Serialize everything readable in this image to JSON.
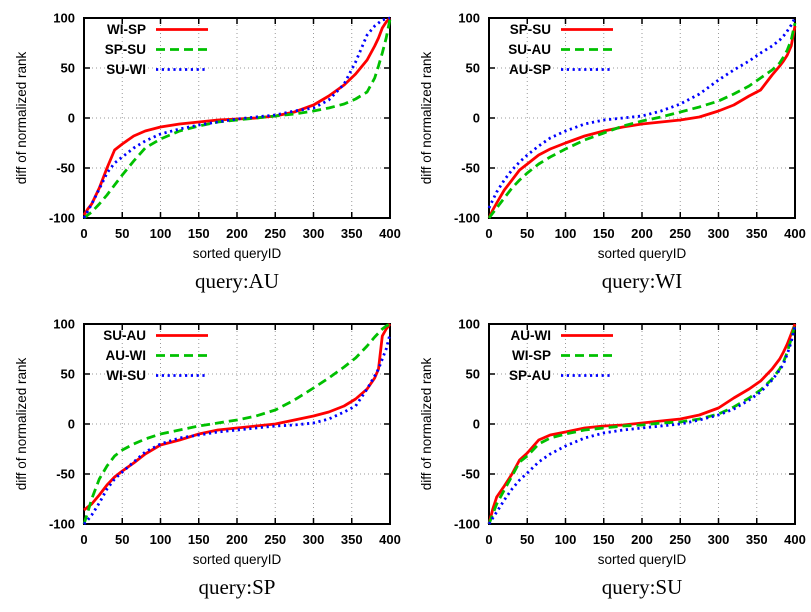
{
  "figure": {
    "background": "#ffffff",
    "grid_color": "#9a9a9a",
    "border_color": "#000000",
    "text_color": "#000000"
  },
  "chart_data": [
    {
      "type": "line",
      "title": "query:AU",
      "xlabel": "sorted queryID",
      "ylabel": "diff of normalized rank",
      "xlim": [
        0,
        400
      ],
      "ylim": [
        -100,
        100
      ],
      "xticks": [
        0,
        50,
        100,
        150,
        200,
        250,
        300,
        350,
        400
      ],
      "yticks": [
        -100,
        -50,
        0,
        50,
        100
      ],
      "grid": true,
      "legend_position": "top-left",
      "x": [
        0,
        5,
        10,
        20,
        30,
        40,
        50,
        65,
        80,
        100,
        125,
        150,
        175,
        200,
        225,
        250,
        275,
        300,
        320,
        340,
        355,
        370,
        380,
        385,
        390,
        395,
        400
      ],
      "series": [
        {
          "name": "WI-SP",
          "color": "#ff0000",
          "style": "solid",
          "y": [
            -97,
            -91,
            -86,
            -70,
            -50,
            -32,
            -26,
            -18,
            -13,
            -9,
            -6,
            -4,
            -2,
            -1,
            0,
            2,
            6,
            13,
            22,
            33,
            44,
            58,
            72,
            80,
            90,
            96,
            100
          ]
        },
        {
          "name": "SP-SU",
          "color": "#00c000",
          "style": "dashed",
          "y": [
            -100,
            -97,
            -94,
            -86,
            -77,
            -67,
            -57,
            -43,
            -30,
            -21,
            -13,
            -8,
            -4,
            -2,
            0,
            2,
            4,
            7,
            10,
            14,
            19,
            26,
            40,
            52,
            65,
            80,
            99
          ]
        },
        {
          "name": "SU-WI",
          "color": "#0000ff",
          "style": "dotted",
          "y": [
            -100,
            -93,
            -86,
            -71,
            -55,
            -45,
            -39,
            -30,
            -23,
            -16,
            -11,
            -7,
            -4,
            -1,
            1,
            3,
            7,
            10,
            18,
            34,
            56,
            83,
            92,
            95,
            98,
            99,
            100
          ]
        }
      ]
    },
    {
      "type": "line",
      "title": "query:WI",
      "xlabel": "sorted queryID",
      "ylabel": "diff of normalized rank",
      "xlim": [
        0,
        400
      ],
      "ylim": [
        -100,
        100
      ],
      "xticks": [
        0,
        50,
        100,
        150,
        200,
        250,
        300,
        350,
        400
      ],
      "yticks": [
        -100,
        -50,
        0,
        50,
        100
      ],
      "grid": true,
      "legend_position": "top-left",
      "x": [
        0,
        5,
        10,
        20,
        30,
        40,
        50,
        65,
        80,
        100,
        125,
        150,
        175,
        200,
        225,
        250,
        275,
        300,
        320,
        340,
        355,
        370,
        380,
        385,
        390,
        395,
        400
      ],
      "series": [
        {
          "name": "SP-SU",
          "color": "#ff0000",
          "style": "solid",
          "y": [
            -100,
            -92,
            -85,
            -72,
            -62,
            -52,
            -46,
            -37,
            -31,
            -25,
            -18,
            -13,
            -9,
            -6,
            -4,
            -2,
            1,
            7,
            13,
            22,
            28,
            43,
            52,
            57,
            63,
            72,
            92
          ]
        },
        {
          "name": "SU-AU",
          "color": "#00c000",
          "style": "dashed",
          "y": [
            -100,
            -95,
            -90,
            -80,
            -70,
            -62,
            -55,
            -46,
            -39,
            -31,
            -22,
            -15,
            -8,
            -3,
            1,
            6,
            11,
            17,
            24,
            32,
            40,
            48,
            55,
            61,
            68,
            78,
            95
          ]
        },
        {
          "name": "AU-SP",
          "color": "#0000ff",
          "style": "dotted",
          "y": [
            -90,
            -82,
            -74,
            -62,
            -52,
            -44,
            -37,
            -28,
            -20,
            -13,
            -6,
            -2,
            0,
            2,
            7,
            14,
            24,
            38,
            48,
            57,
            65,
            72,
            78,
            82,
            87,
            93,
            100
          ]
        }
      ]
    },
    {
      "type": "line",
      "title": "query:SP",
      "xlabel": "sorted queryID",
      "ylabel": "diff of normalized rank",
      "xlim": [
        0,
        400
      ],
      "ylim": [
        -100,
        100
      ],
      "xticks": [
        0,
        50,
        100,
        150,
        200,
        250,
        300,
        350,
        400
      ],
      "yticks": [
        -100,
        -50,
        0,
        50,
        100
      ],
      "grid": true,
      "legend_position": "top-left",
      "x": [
        0,
        5,
        10,
        20,
        30,
        40,
        50,
        65,
        80,
        100,
        125,
        150,
        175,
        200,
        225,
        250,
        275,
        300,
        320,
        340,
        355,
        370,
        380,
        385,
        390,
        395,
        400
      ],
      "series": [
        {
          "name": "SU-AU",
          "color": "#ff0000",
          "style": "solid",
          "y": [
            -86,
            -83,
            -80,
            -71,
            -61,
            -53,
            -47,
            -39,
            -30,
            -21,
            -16,
            -10,
            -6,
            -4,
            -2,
            0,
            4,
            8,
            12,
            18,
            25,
            35,
            46,
            55,
            88,
            95,
            100
          ]
        },
        {
          "name": "AU-WI",
          "color": "#00c000",
          "style": "dashed",
          "y": [
            -100,
            -88,
            -75,
            -55,
            -42,
            -32,
            -26,
            -20,
            -15,
            -10,
            -6,
            -2,
            1,
            4,
            8,
            14,
            24,
            36,
            46,
            57,
            66,
            78,
            87,
            91,
            95,
            98,
            100
          ]
        },
        {
          "name": "WI-SU",
          "color": "#0000ff",
          "style": "dotted",
          "y": [
            -100,
            -96,
            -91,
            -79,
            -65,
            -55,
            -48,
            -38,
            -28,
            -20,
            -14,
            -11,
            -8,
            -6,
            -4,
            -2,
            -1,
            1,
            5,
            12,
            18,
            35,
            48,
            55,
            65,
            75,
            90
          ]
        }
      ]
    },
    {
      "type": "line",
      "title": "query:SU",
      "xlabel": "sorted queryID",
      "ylabel": "diff of normalized rank",
      "xlim": [
        0,
        400
      ],
      "ylim": [
        -100,
        100
      ],
      "xticks": [
        0,
        50,
        100,
        150,
        200,
        250,
        300,
        350,
        400
      ],
      "yticks": [
        -100,
        -50,
        0,
        50,
        100
      ],
      "grid": true,
      "legend_position": "top-left",
      "x": [
        0,
        5,
        10,
        20,
        30,
        40,
        50,
        65,
        80,
        100,
        125,
        150,
        175,
        200,
        225,
        250,
        275,
        300,
        320,
        340,
        355,
        370,
        380,
        385,
        390,
        395,
        400
      ],
      "series": [
        {
          "name": "AU-WI",
          "color": "#ff0000",
          "style": "solid",
          "y": [
            -100,
            -85,
            -73,
            -62,
            -50,
            -36,
            -29,
            -16,
            -11,
            -8,
            -4,
            -2,
            -1,
            1,
            3,
            5,
            9,
            16,
            26,
            35,
            43,
            55,
            65,
            72,
            80,
            90,
            100
          ]
        },
        {
          "name": "WI-SP",
          "color": "#00c000",
          "style": "dashed",
          "y": [
            -100,
            -90,
            -80,
            -66,
            -52,
            -38,
            -32,
            -20,
            -14,
            -10,
            -6,
            -4,
            -2,
            -1,
            1,
            2,
            5,
            10,
            17,
            26,
            34,
            45,
            55,
            62,
            72,
            85,
            100
          ]
        },
        {
          "name": "SP-AU",
          "color": "#0000ff",
          "style": "dotted",
          "y": [
            -100,
            -94,
            -88,
            -76,
            -65,
            -56,
            -49,
            -38,
            -30,
            -22,
            -14,
            -9,
            -6,
            -4,
            -2,
            0,
            4,
            9,
            15,
            24,
            32,
            44,
            54,
            60,
            70,
            82,
            98
          ]
        }
      ]
    }
  ]
}
